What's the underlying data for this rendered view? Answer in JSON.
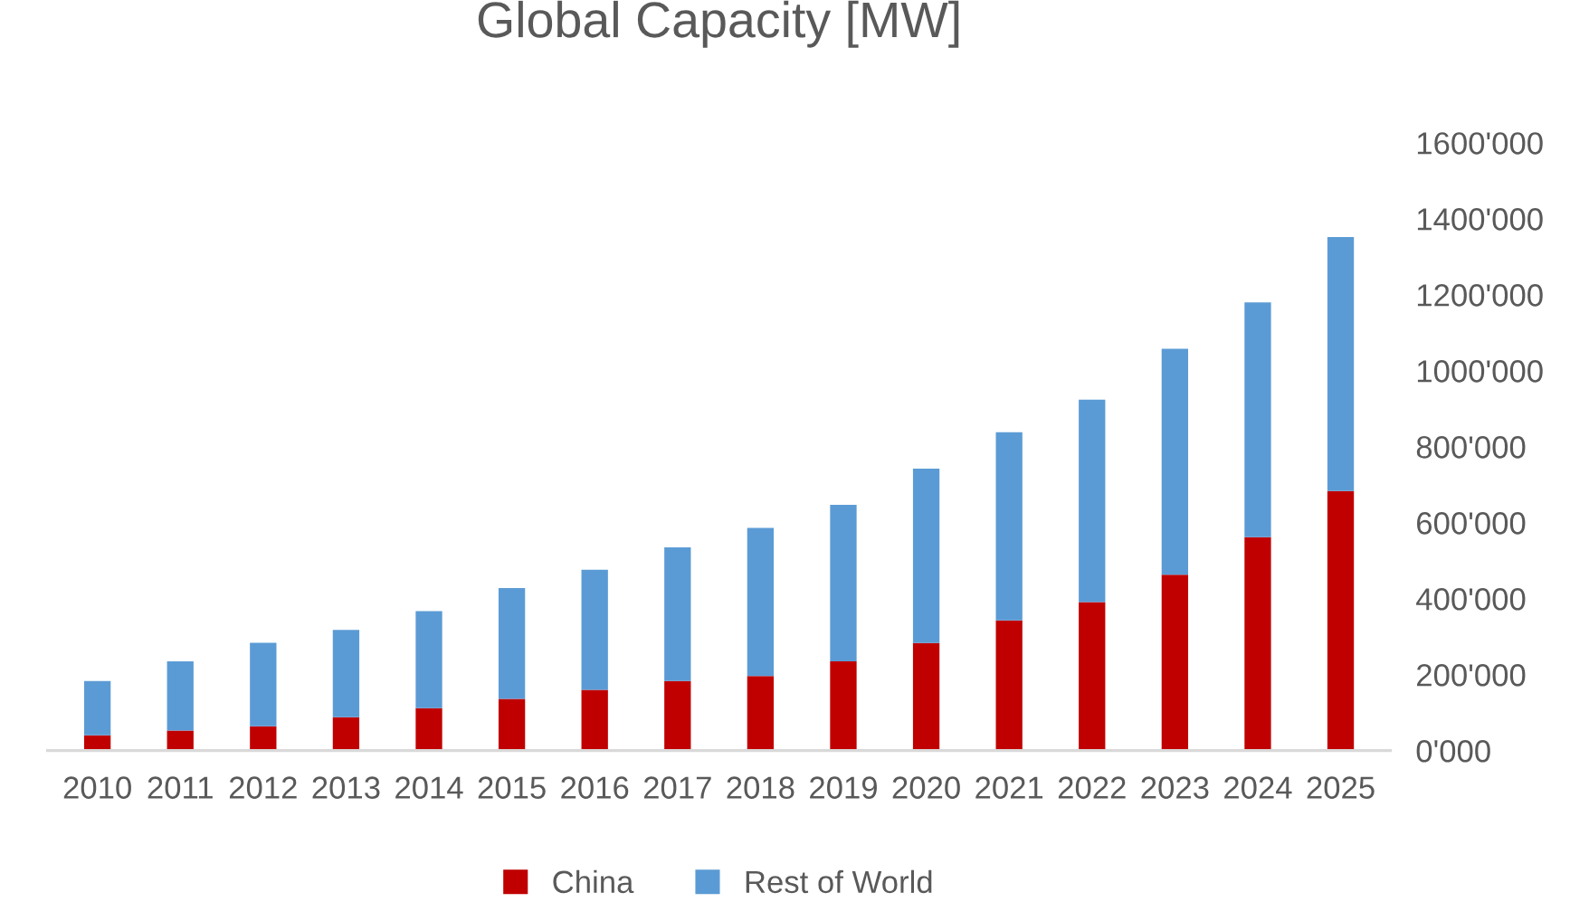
{
  "chart_data": {
    "type": "bar",
    "title": "Global Capacity [MW]",
    "stacked": true,
    "categories": [
      "2010",
      "2011",
      "2012",
      "2013",
      "2014",
      "2015",
      "2016",
      "2017",
      "2018",
      "2019",
      "2020",
      "2021",
      "2022",
      "2023",
      "2024",
      "2025"
    ],
    "series": [
      {
        "name": "China",
        "color": "#c00000",
        "values": [
          40000,
          53000,
          64000,
          88000,
          112000,
          136000,
          160000,
          183000,
          196000,
          235000,
          283000,
          343000,
          391000,
          463000,
          562000,
          683000
        ]
      },
      {
        "name": "Rest of World",
        "color": "#5b9bd5",
        "values": [
          143000,
          182000,
          220000,
          230000,
          255000,
          292000,
          316000,
          352000,
          390000,
          412000,
          459000,
          495000,
          533000,
          595000,
          618000,
          669000
        ]
      }
    ],
    "ylim": [
      0,
      1600000
    ],
    "yticks": [
      {
        "value": 0,
        "label": "0'000"
      },
      {
        "value": 200000,
        "label": "200'000"
      },
      {
        "value": 400000,
        "label": "400'000"
      },
      {
        "value": 600000,
        "label": "600'000"
      },
      {
        "value": 800000,
        "label": "800'000"
      },
      {
        "value": 1000000,
        "label": "1000'000"
      },
      {
        "value": 1200000,
        "label": "1200'000"
      },
      {
        "value": 1400000,
        "label": "1400'000"
      },
      {
        "value": 1600000,
        "label": "1600'000"
      }
    ],
    "legend": "bottom",
    "grid": false
  }
}
